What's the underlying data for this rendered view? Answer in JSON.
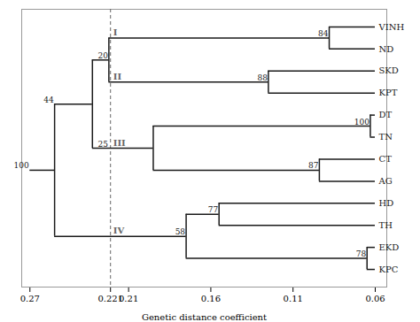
{
  "chart_data": {
    "type": "dendrogram",
    "x_label": "Genetic distance coefficient",
    "xlim": [
      0.275,
      0.053
    ],
    "xticks": [
      0.27,
      0.221,
      0.21,
      0.16,
      0.11,
      0.06
    ],
    "grid": false,
    "color": "#1a1a1a",
    "leaf_x": 0.06,
    "root_x": 0.27,
    "vline": {
      "x": 0.221,
      "color": "#666666",
      "line_style": "dashed"
    },
    "tree": {
      "height": 0.255,
      "support": 100,
      "support_at": 0.27,
      "children": [
        {
          "height": 0.232,
          "support": 44,
          "support_at": 0.255,
          "children": [
            {
              "height": 0.222,
              "support": 20,
              "children": [
                {
                  "height": 0.088,
                  "support": 84,
                  "cluster": "I",
                  "children": [
                    "VINH",
                    "ND"
                  ]
                },
                {
                  "height": 0.125,
                  "support": 88,
                  "cluster": "II",
                  "children": [
                    "SKD",
                    "KPT"
                  ]
                }
              ]
            },
            {
              "height": 0.195,
              "support": 25,
              "support_at": 0.222,
              "cluster": "III",
              "children": [
                {
                  "height": 0.063,
                  "support": 100,
                  "children": [
                    "DT",
                    "TN"
                  ]
                },
                {
                  "height": 0.094,
                  "support": 87,
                  "children": [
                    "CT",
                    "AG"
                  ]
                }
              ]
            }
          ]
        },
        {
          "height": 0.175,
          "support": 58,
          "cluster": "IV",
          "children": [
            {
              "height": 0.155,
              "support": 77,
              "children": [
                "HD",
                "TH"
              ]
            },
            {
              "height": 0.065,
              "support": 78,
              "children": [
                "EKD",
                "KPC"
              ]
            }
          ]
        }
      ]
    }
  }
}
